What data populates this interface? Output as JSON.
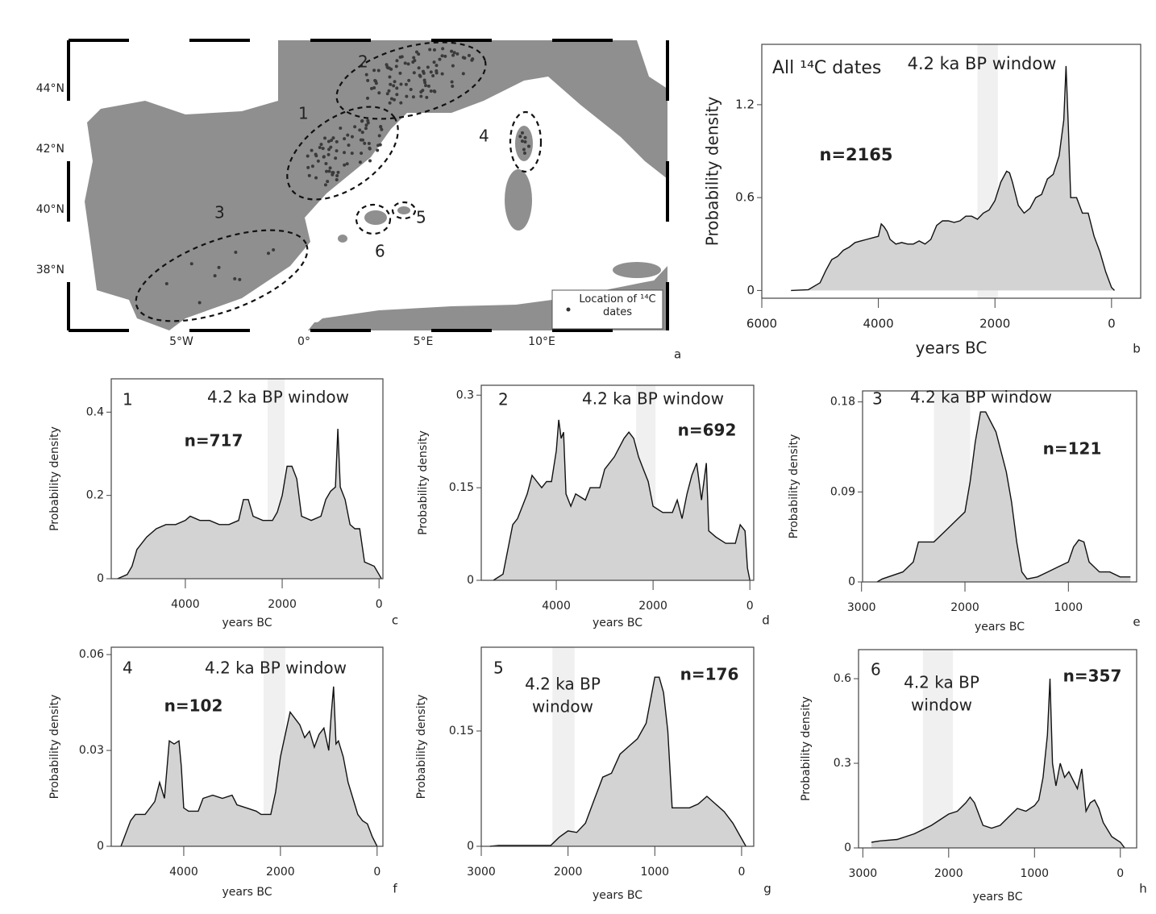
{
  "map": {
    "lat_labels": [
      "44°N",
      "42°N",
      "40°N",
      "38°N"
    ],
    "lon_labels": [
      "5°W",
      "0°",
      "5°E",
      "10°E"
    ],
    "regions": [
      "1",
      "2",
      "3",
      "4",
      "5",
      "6"
    ],
    "legend": "Location of ¹⁴C dates",
    "panel_label": "a"
  },
  "chart_data": [
    {
      "type": "area",
      "label": "All ¹⁴C dates",
      "window_label": [
        "4.2 ka BP window"
      ],
      "n_label": "n=2165",
      "ylabel": "Probability density",
      "xlabel": "years BC",
      "panel": "b",
      "x": [
        5500,
        5200,
        5000,
        4900,
        4800,
        4700,
        4600,
        4500,
        4400,
        4300,
        4200,
        4100,
        4000,
        3950,
        3900,
        3850,
        3800,
        3700,
        3600,
        3500,
        3400,
        3300,
        3200,
        3100,
        3000,
        2900,
        2800,
        2700,
        2600,
        2500,
        2400,
        2300,
        2200,
        2100,
        2000,
        1900,
        1800,
        1750,
        1700,
        1600,
        1500,
        1400,
        1300,
        1200,
        1100,
        1000,
        900,
        820,
        780,
        740,
        700,
        600,
        500,
        400,
        300,
        200,
        100,
        0,
        -50
      ],
      "values": [
        0,
        0.005,
        0.05,
        0.13,
        0.2,
        0.22,
        0.26,
        0.28,
        0.31,
        0.32,
        0.33,
        0.34,
        0.35,
        0.43,
        0.41,
        0.38,
        0.33,
        0.3,
        0.31,
        0.3,
        0.3,
        0.32,
        0.3,
        0.33,
        0.42,
        0.45,
        0.45,
        0.44,
        0.45,
        0.48,
        0.48,
        0.46,
        0.5,
        0.52,
        0.58,
        0.7,
        0.77,
        0.76,
        0.7,
        0.55,
        0.5,
        0.53,
        0.6,
        0.62,
        0.72,
        0.75,
        0.87,
        1.1,
        1.45,
        1.05,
        0.6,
        0.6,
        0.5,
        0.5,
        0.35,
        0.25,
        0.12,
        0.02,
        0
      ],
      "xlim": [
        6000,
        -500
      ],
      "ylim": [
        -0.05,
        1.59
      ],
      "xticks": [
        6000,
        4000,
        2000,
        0
      ],
      "yticks": [
        0,
        0.6,
        1.2
      ],
      "window": [
        2300,
        1950
      ],
      "color": "#d3d3d3",
      "line_color": "#111111",
      "window_color": "#f0f0f0"
    },
    {
      "type": "area",
      "label": "1",
      "window_label": [
        "4.2 ka BP window"
      ],
      "n_label": "n=717",
      "ylabel": "Probability density",
      "xlabel": "years BC",
      "panel": "c",
      "x": [
        5400,
        5200,
        5100,
        5000,
        4800,
        4600,
        4400,
        4200,
        4000,
        3900,
        3700,
        3500,
        3300,
        3100,
        2900,
        2800,
        2700,
        2600,
        2400,
        2200,
        2100,
        2000,
        1900,
        1800,
        1700,
        1600,
        1400,
        1200,
        1100,
        1000,
        900,
        850,
        800,
        700,
        600,
        500,
        400,
        300,
        100,
        0,
        -50
      ],
      "values": [
        0,
        0.01,
        0.03,
        0.07,
        0.1,
        0.12,
        0.13,
        0.13,
        0.14,
        0.15,
        0.14,
        0.14,
        0.13,
        0.13,
        0.14,
        0.19,
        0.19,
        0.15,
        0.14,
        0.14,
        0.16,
        0.2,
        0.27,
        0.27,
        0.24,
        0.15,
        0.14,
        0.15,
        0.19,
        0.21,
        0.22,
        0.36,
        0.22,
        0.19,
        0.13,
        0.12,
        0.12,
        0.04,
        0.03,
        0.01,
        0
      ],
      "xlim": [
        5530,
        -80
      ],
      "ylim": [
        0,
        0.48
      ],
      "xticks": [
        4000,
        2000,
        0
      ],
      "yticks": [
        0,
        0.2,
        0.4
      ],
      "window": [
        2300,
        1950
      ],
      "color": "#d3d3d3",
      "line_color": "#111111",
      "window_color": "#f0f0f0"
    },
    {
      "type": "area",
      "label": "2",
      "window_label": [
        "4.2 ka BP window"
      ],
      "n_label": "n=692",
      "ylabel": "Probability density",
      "xlabel": "years BC",
      "panel": "d",
      "x": [
        5300,
        5100,
        5000,
        4900,
        4800,
        4700,
        4600,
        4500,
        4400,
        4300,
        4200,
        4100,
        4000,
        3950,
        3900,
        3850,
        3800,
        3700,
        3600,
        3400,
        3300,
        3100,
        3000,
        2800,
        2600,
        2500,
        2400,
        2300,
        2200,
        2100,
        2000,
        1800,
        1600,
        1500,
        1400,
        1300,
        1200,
        1100,
        1000,
        900,
        850,
        700,
        500,
        300,
        200,
        100,
        50,
        0
      ],
      "values": [
        0,
        0.01,
        0.05,
        0.09,
        0.1,
        0.12,
        0.14,
        0.17,
        0.16,
        0.15,
        0.16,
        0.16,
        0.21,
        0.26,
        0.23,
        0.24,
        0.14,
        0.12,
        0.14,
        0.13,
        0.15,
        0.15,
        0.18,
        0.2,
        0.23,
        0.24,
        0.23,
        0.2,
        0.18,
        0.16,
        0.12,
        0.11,
        0.11,
        0.13,
        0.1,
        0.14,
        0.17,
        0.19,
        0.13,
        0.19,
        0.08,
        0.07,
        0.06,
        0.06,
        0.09,
        0.08,
        0.02,
        0
      ],
      "xlim": [
        5550,
        -80
      ],
      "ylim": [
        0,
        0.316
      ],
      "xticks": [
        4000,
        2000,
        0
      ],
      "yticks": [
        0,
        0.15,
        0.3
      ],
      "window": [
        2350,
        1950
      ],
      "color": "#d3d3d3",
      "line_color": "#111111",
      "window_color": "#f0f0f0"
    },
    {
      "type": "area",
      "label": "3",
      "window_label": [
        "4.2 ka BP window"
      ],
      "n_label": "n=121",
      "ylabel": "Probability density",
      "xlabel": "years BC",
      "panel": "e",
      "x": [
        2850,
        2800,
        2600,
        2500,
        2450,
        2300,
        2200,
        2100,
        2000,
        1950,
        1900,
        1850,
        1800,
        1750,
        1700,
        1600,
        1550,
        1500,
        1450,
        1400,
        1300,
        1200,
        1100,
        1000,
        950,
        900,
        850,
        800,
        700,
        600,
        500,
        400
      ],
      "values": [
        0,
        0.003,
        0.01,
        0.02,
        0.04,
        0.04,
        0.05,
        0.06,
        0.07,
        0.1,
        0.14,
        0.17,
        0.17,
        0.16,
        0.15,
        0.11,
        0.08,
        0.04,
        0.01,
        0.003,
        0.005,
        0.01,
        0.015,
        0.02,
        0.035,
        0.042,
        0.04,
        0.02,
        0.01,
        0.01,
        0.005,
        0.005
      ],
      "xlim": [
        2990,
        340
      ],
      "ylim": [
        0,
        0.191
      ],
      "xticks": [
        3000,
        2000,
        1000
      ],
      "yticks": [
        0,
        0.09,
        0.18
      ],
      "window": [
        2300,
        1950
      ],
      "color": "#d3d3d3",
      "line_color": "#111111",
      "window_color": "#f0f0f0"
    },
    {
      "type": "area",
      "label": "4",
      "window_label": [
        "4.2 ka BP window"
      ],
      "n_label": "n=102",
      "ylabel": "Probability density",
      "xlabel": "years BC",
      "panel": "f",
      "x": [
        5300,
        5100,
        5000,
        4800,
        4600,
        4500,
        4400,
        4300,
        4200,
        4100,
        4050,
        4000,
        3900,
        3700,
        3600,
        3400,
        3200,
        3000,
        2900,
        2700,
        2500,
        2400,
        2200,
        2100,
        2000,
        1900,
        1800,
        1700,
        1600,
        1500,
        1400,
        1300,
        1200,
        1100,
        1000,
        950,
        900,
        850,
        800,
        700,
        600,
        500,
        400,
        300,
        200,
        100,
        0
      ],
      "values": [
        0,
        0.008,
        0.01,
        0.01,
        0.014,
        0.02,
        0.015,
        0.033,
        0.032,
        0.033,
        0.025,
        0.012,
        0.011,
        0.011,
        0.015,
        0.016,
        0.015,
        0.016,
        0.013,
        0.012,
        0.011,
        0.01,
        0.01,
        0.017,
        0.028,
        0.035,
        0.042,
        0.04,
        0.038,
        0.034,
        0.036,
        0.031,
        0.035,
        0.037,
        0.03,
        0.041,
        0.05,
        0.032,
        0.033,
        0.028,
        0.02,
        0.015,
        0.01,
        0.008,
        0.007,
        0.003,
        0
      ],
      "xlim": [
        5500,
        -120
      ],
      "ylim": [
        0,
        0.0623
      ],
      "xticks": [
        4000,
        2000,
        0
      ],
      "yticks": [
        0,
        0.03,
        0.06
      ],
      "window": [
        2350,
        1900
      ],
      "color": "#d3d3d3",
      "line_color": "#111111",
      "window_color": "#f0f0f0"
    },
    {
      "type": "area",
      "label": "5",
      "window_label": [
        "4.2 ka BP",
        "window"
      ],
      "n_label": "n=176",
      "ylabel": "Probability density",
      "xlabel": "years BC",
      "panel": "g",
      "x": [
        2900,
        2800,
        2600,
        2300,
        2200,
        2100,
        2000,
        1900,
        1800,
        1700,
        1600,
        1500,
        1400,
        1300,
        1200,
        1100,
        1050,
        1000,
        950,
        900,
        850,
        800,
        700,
        600,
        500,
        400,
        300,
        200,
        100,
        0,
        -50
      ],
      "values": [
        0,
        0.001,
        0.001,
        0.001,
        0.001,
        0.012,
        0.02,
        0.018,
        0.03,
        0.06,
        0.09,
        0.095,
        0.12,
        0.13,
        0.14,
        0.16,
        0.19,
        0.22,
        0.22,
        0.2,
        0.15,
        0.05,
        0.05,
        0.05,
        0.055,
        0.065,
        0.055,
        0.045,
        0.03,
        0.01,
        0
      ],
      "xlim": [
        3000,
        -140
      ],
      "ylim": [
        0,
        0.259
      ],
      "xticks": [
        3000,
        2000,
        1000,
        0
      ],
      "yticks": [
        0,
        0.15
      ],
      "window": [
        2180,
        1925
      ],
      "color": "#d3d3d3",
      "line_color": "#111111",
      "window_color": "#f0f0f0"
    },
    {
      "type": "area",
      "label": "6",
      "window_label": [
        "4.2 ka BP",
        "window"
      ],
      "n_label": "n=357",
      "ylabel": "Probability density",
      "xlabel": "years BC",
      "panel": "h",
      "x": [
        2900,
        2800,
        2600,
        2400,
        2200,
        2100,
        2000,
        1900,
        1800,
        1750,
        1700,
        1600,
        1500,
        1400,
        1300,
        1200,
        1100,
        1000,
        950,
        900,
        850,
        820,
        790,
        750,
        700,
        650,
        600,
        550,
        500,
        450,
        400,
        350,
        300,
        250,
        200,
        100,
        0,
        -50
      ],
      "values": [
        0.02,
        0.025,
        0.03,
        0.05,
        0.08,
        0.1,
        0.12,
        0.13,
        0.16,
        0.18,
        0.16,
        0.08,
        0.07,
        0.08,
        0.11,
        0.14,
        0.13,
        0.15,
        0.17,
        0.25,
        0.4,
        0.6,
        0.3,
        0.22,
        0.3,
        0.25,
        0.27,
        0.24,
        0.21,
        0.28,
        0.13,
        0.16,
        0.17,
        0.14,
        0.09,
        0.04,
        0.02,
        0
      ],
      "xlim": [
        3050,
        -190
      ],
      "ylim": [
        0,
        0.703
      ],
      "xticks": [
        3000,
        2000,
        1000,
        0
      ],
      "yticks": [
        0,
        0.3,
        0.6
      ],
      "window": [
        2300,
        1950
      ],
      "color": "#d3d3d3",
      "line_color": "#111111",
      "window_color": "#f0f0f0"
    }
  ]
}
